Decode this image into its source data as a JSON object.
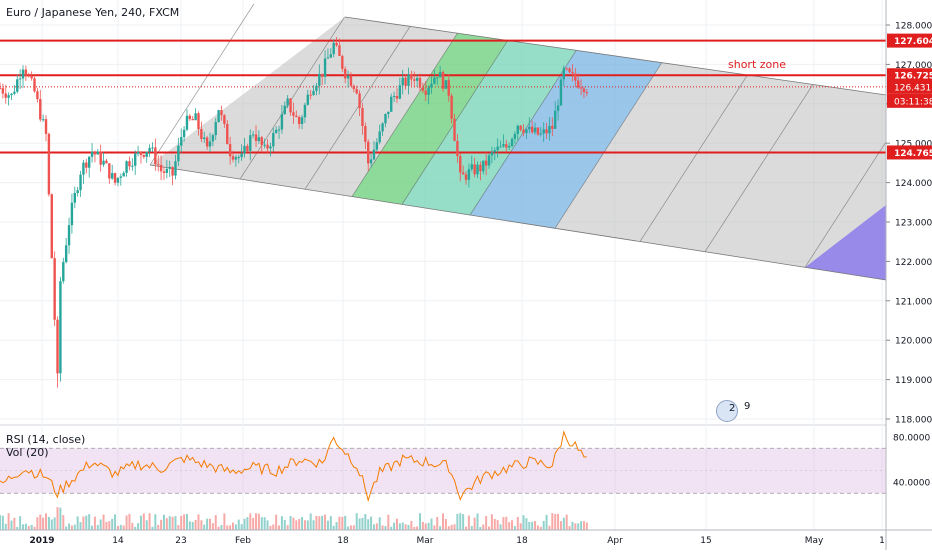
{
  "header": {
    "symbol_title": "Euro / Japanese Yen, 240, FXCM"
  },
  "indicators": {
    "rsi_label": "RSI (14, close)",
    "vol_label": "Vol (20)"
  },
  "annotations": {
    "short_zone": "short zone"
  },
  "badges": {
    "events_count": "2",
    "events_count_2": "9"
  },
  "colors": {
    "resistance": "#e01e1e",
    "candle_up": "#26a69a",
    "candle_down": "#ef5350",
    "rsi_line": "#f57c00",
    "rsi_band": "#e1bee7",
    "channel_gray": "#bdbdbd",
    "channel_green": "#4cd964",
    "channel_teal": "#5ce0b8",
    "channel_blue": "#64b5f6",
    "channel_purple": "#7b68ee"
  },
  "chart_data": [
    {
      "type": "candlestick",
      "title": "Euro / Japanese Yen, 240, FXCM",
      "x_ticks": [
        "2019",
        "14",
        "23",
        "Feb",
        "18",
        "Mar",
        "18",
        "Apr",
        "15",
        "May",
        "1"
      ],
      "y_ticks": [
        "128.000",
        "127.000",
        "126.000",
        "125.000",
        "124.000",
        "123.000",
        "122.000",
        "121.000",
        "120.000",
        "119.000",
        "118.000"
      ],
      "ylim": [
        117.9,
        128.4
      ],
      "horizontal_levels": [
        {
          "label": "127.604",
          "value": 127.604
        },
        {
          "label": "126.725",
          "value": 126.725
        },
        {
          "label": "124.765",
          "value": 124.765
        }
      ],
      "price_labels": [
        {
          "label": "126.431",
          "value": 126.431
        },
        {
          "label": "03:11:38",
          "value": 126.2
        }
      ],
      "price_path": [
        [
          0,
          126.4
        ],
        [
          2,
          126.2
        ],
        [
          4,
          127.0
        ],
        [
          6,
          126.3
        ],
        [
          8,
          125.2
        ],
        [
          10,
          119.0
        ],
        [
          10.5,
          121.5
        ],
        [
          12,
          123.0
        ],
        [
          14,
          124.3
        ],
        [
          16,
          124.8
        ],
        [
          18,
          124.5
        ],
        [
          20,
          124.0
        ],
        [
          22,
          124.5
        ],
        [
          24,
          124.7
        ],
        [
          26,
          124.9
        ],
        [
          28,
          124.3
        ],
        [
          30,
          124.2
        ],
        [
          32,
          125.5
        ],
        [
          34,
          125.6
        ],
        [
          36,
          124.8
        ],
        [
          38,
          125.9
        ],
        [
          40,
          124.8
        ],
        [
          42,
          124.6
        ],
        [
          44,
          125.3
        ],
        [
          46,
          124.8
        ],
        [
          48,
          125.3
        ],
        [
          50,
          126.0
        ],
        [
          52,
          125.5
        ],
        [
          54,
          126.4
        ],
        [
          56,
          126.8
        ],
        [
          58,
          127.5
        ],
        [
          60,
          126.8
        ],
        [
          62,
          126.4
        ],
        [
          64,
          124.5
        ],
        [
          66,
          125.2
        ],
        [
          68,
          126.1
        ],
        [
          70,
          126.5
        ],
        [
          72,
          126.7
        ],
        [
          74,
          126.4
        ],
        [
          76,
          126.8
        ],
        [
          78,
          126.3
        ],
        [
          80,
          124.1
        ],
        [
          82,
          124.3
        ],
        [
          84,
          124.4
        ],
        [
          86,
          124.8
        ],
        [
          88,
          124.9
        ],
        [
          90,
          125.5
        ],
        [
          92,
          125.3
        ],
        [
          94,
          125.2
        ],
        [
          96,
          125.4
        ],
        [
          98,
          126.8
        ],
        [
          100,
          126.6
        ],
        [
          102,
          126.43
        ]
      ]
    },
    {
      "type": "line",
      "title": "RSI (14, close)",
      "y_ticks": [
        "80.0000",
        "40.0000"
      ],
      "ylim": [
        15,
        85
      ],
      "band": [
        30,
        70
      ],
      "x": [
        0,
        4,
        8,
        10,
        12,
        16,
        20,
        24,
        28,
        32,
        36,
        40,
        44,
        48,
        52,
        56,
        58,
        62,
        64,
        66,
        70,
        74,
        78,
        80,
        84,
        88,
        92,
        96,
        98,
        100,
        102
      ],
      "values": [
        37,
        52,
        45,
        30,
        40,
        58,
        47,
        56,
        52,
        61,
        55,
        49,
        53,
        50,
        60,
        57,
        79,
        55,
        27,
        48,
        60,
        58,
        54,
        28,
        45,
        52,
        58,
        55,
        82,
        72,
        58
      ]
    }
  ]
}
